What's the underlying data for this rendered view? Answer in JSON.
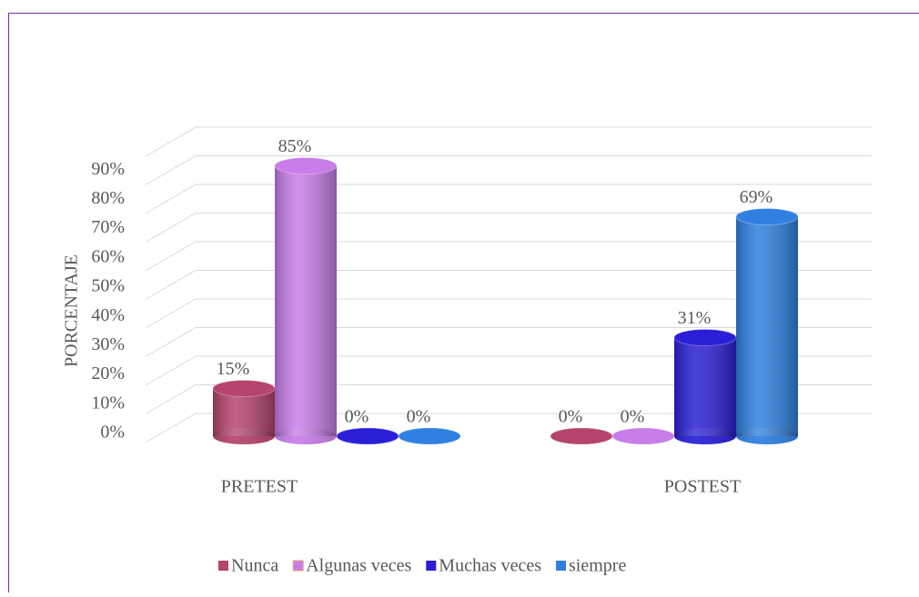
{
  "chart_data": {
    "type": "bar3d",
    "y_label": "PORCENTAJE",
    "categories": [
      "PRETEST",
      "POSTEST"
    ],
    "series": [
      {
        "name": "Nunca",
        "color": "#b5446e",
        "values": [
          15,
          0
        ],
        "value_labels": [
          "15%",
          "0%"
        ]
      },
      {
        "name": "Algunas veces",
        "color": "#c87de8",
        "values": [
          85,
          0
        ],
        "value_labels": [
          "85%",
          "0%"
        ]
      },
      {
        "name": "Muchas veces",
        "color": "#2a1fd6",
        "values": [
          0,
          31
        ],
        "value_labels": [
          "0%",
          "31%"
        ]
      },
      {
        "name": "siempre",
        "color": "#2f80e0",
        "values": [
          0,
          69
        ],
        "value_labels": [
          "0%",
          "69%"
        ]
      }
    ],
    "ylim": [
      0,
      100
    ],
    "yticks": [
      {
        "value": 0,
        "label": "0%"
      },
      {
        "value": 10,
        "label": "10%"
      },
      {
        "value": 20,
        "label": "20%"
      },
      {
        "value": 30,
        "label": "30%"
      },
      {
        "value": 40,
        "label": "40%"
      },
      {
        "value": 50,
        "label": "50%"
      },
      {
        "value": 60,
        "label": "60%"
      },
      {
        "value": 70,
        "label": "70%"
      },
      {
        "value": 80,
        "label": "80%"
      },
      {
        "value": 90,
        "label": "90%"
      }
    ],
    "grid": true,
    "legend": "bottom"
  }
}
